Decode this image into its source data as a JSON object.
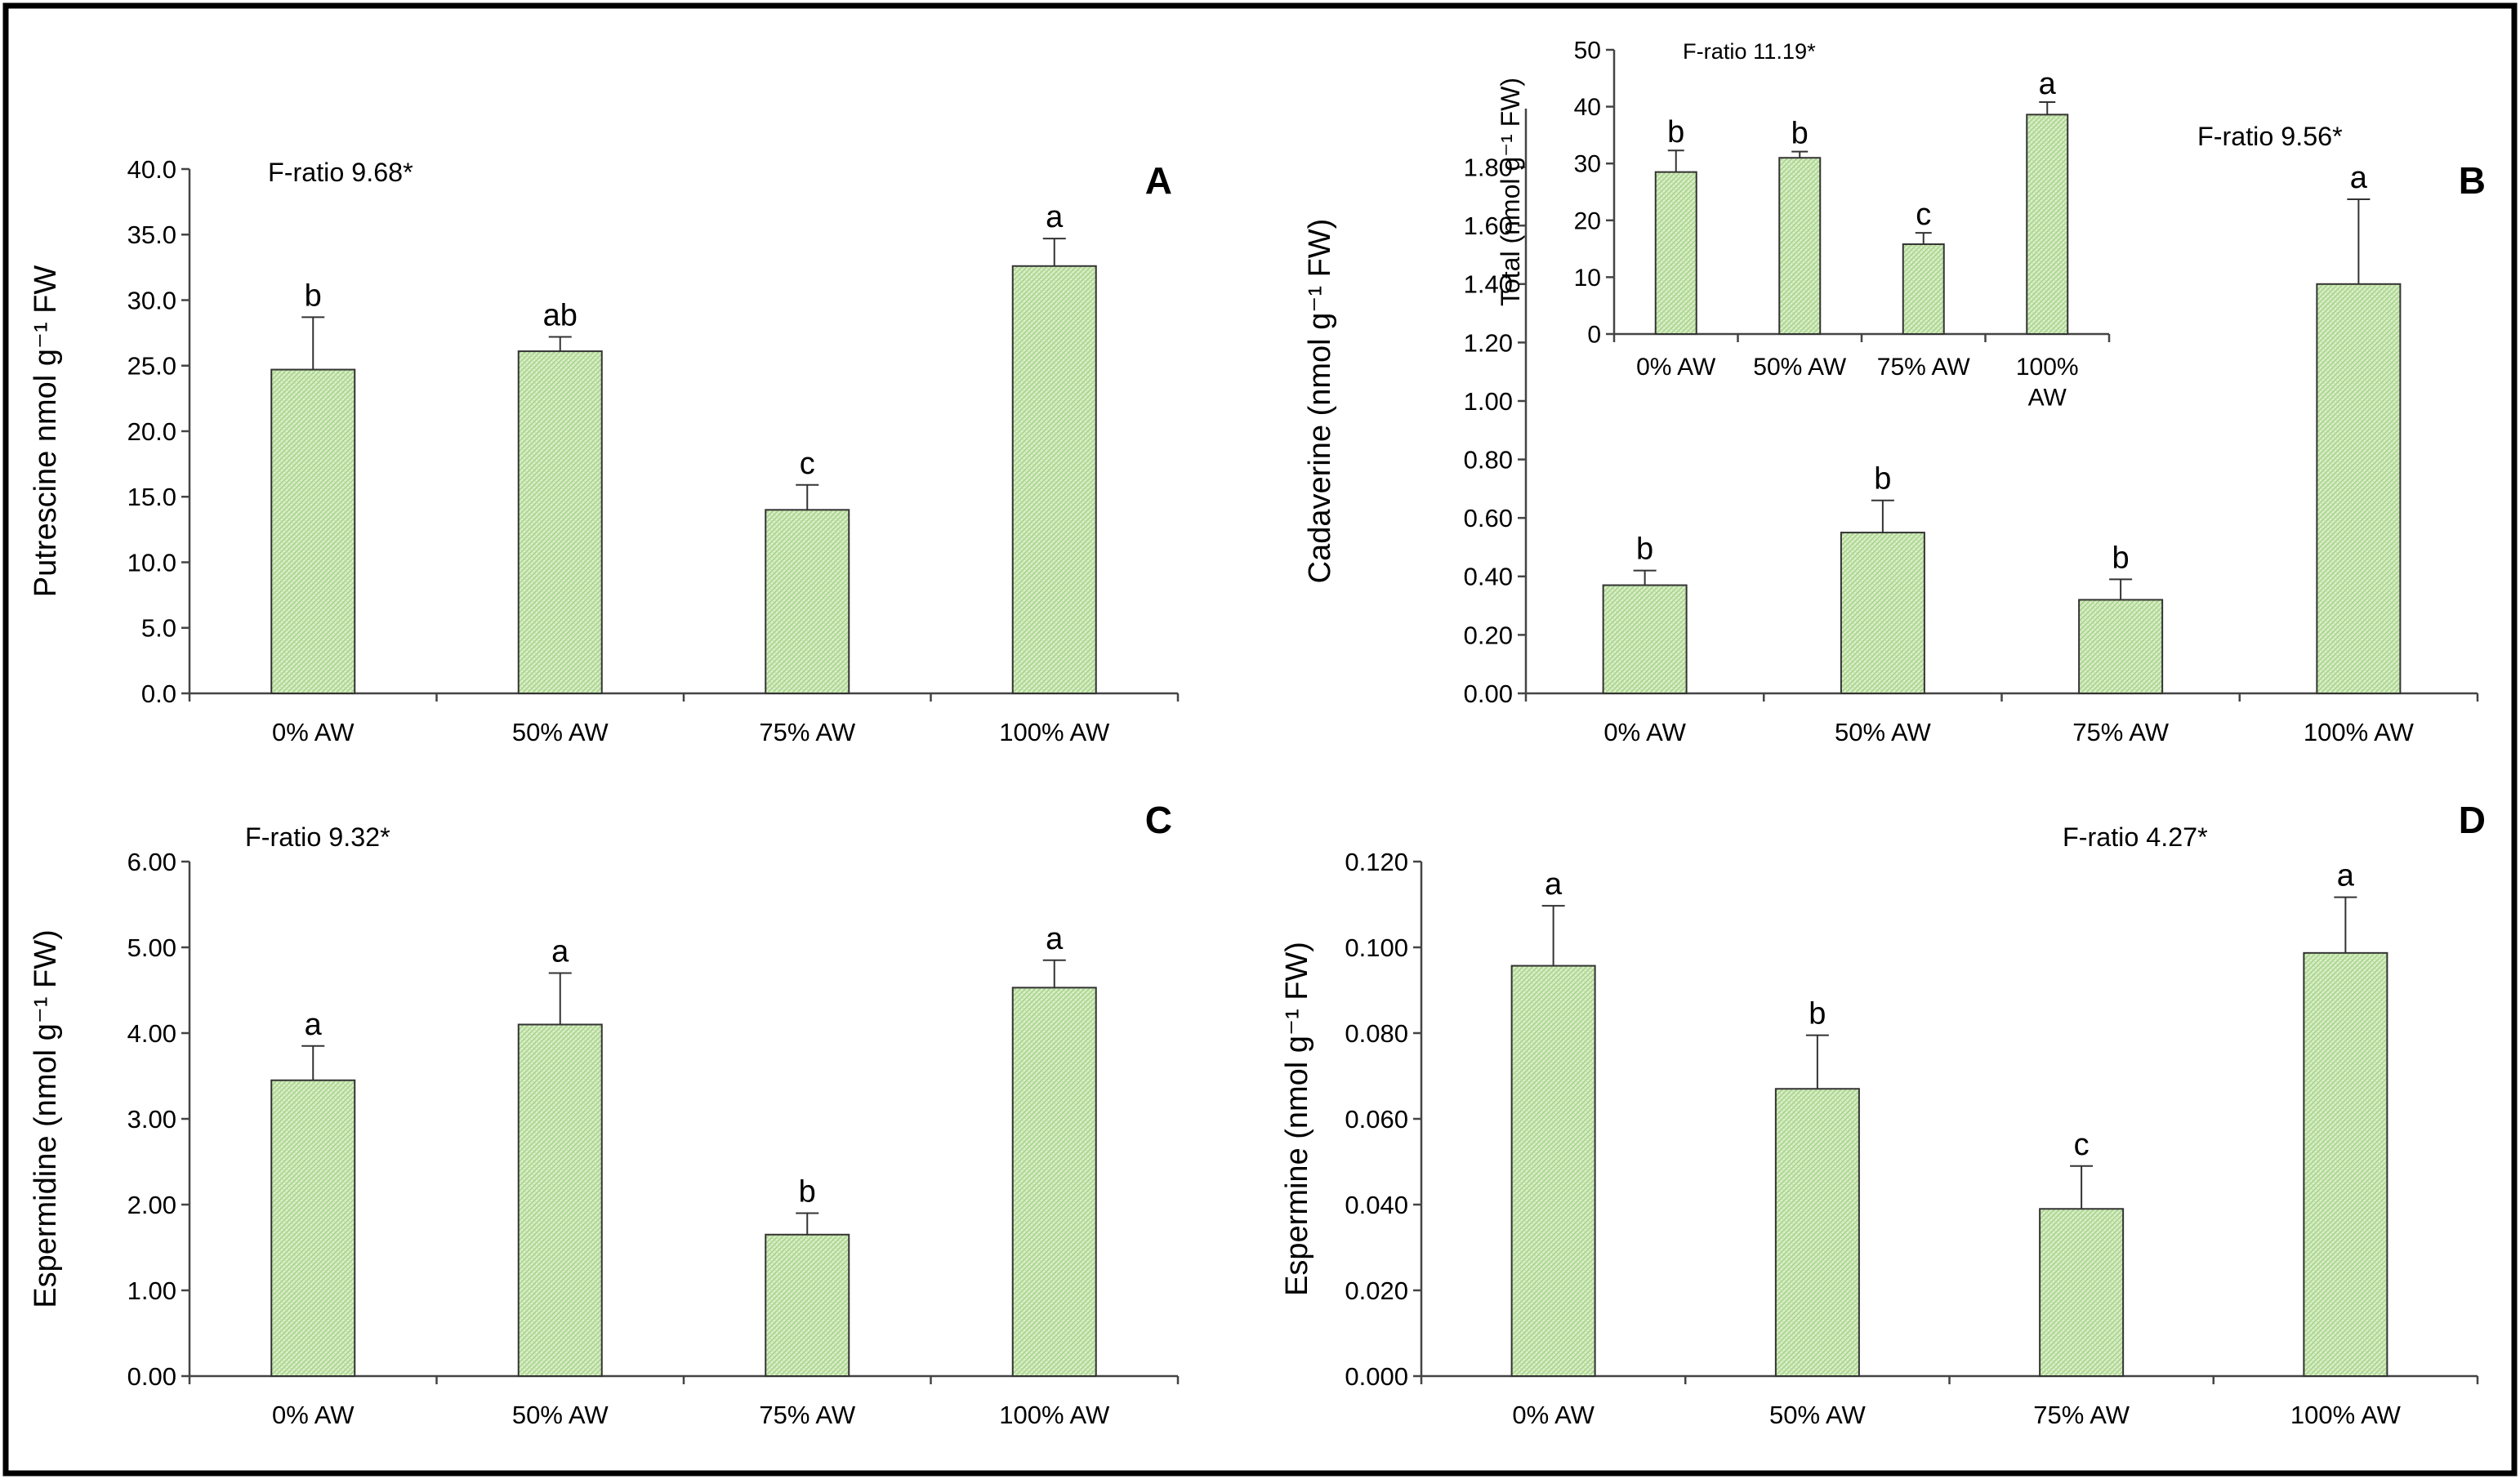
{
  "chart_data": [
    {
      "id": "A",
      "type": "bar",
      "panel_label": "A",
      "ylabel": "Putrescine nmol g⁻¹ FW",
      "f_ratio": "F-ratio  9.68*",
      "categories": [
        "0% AW",
        "50% AW",
        "75% AW",
        "100% AW"
      ],
      "values": [
        24.7,
        26.1,
        14.0,
        32.6
      ],
      "errors": [
        4.0,
        1.1,
        1.9,
        2.1
      ],
      "letters": [
        "b",
        "ab",
        "c",
        "a"
      ],
      "ylim": [
        0,
        40
      ],
      "yticks": [
        "0.0",
        "5.0",
        "10.0",
        "15.0",
        "20.0",
        "25.0",
        "30.0",
        "35.0",
        "40.0"
      ],
      "bar_color": "#c8e6b0",
      "grid": false
    },
    {
      "id": "B",
      "type": "bar",
      "panel_label": "B",
      "ylabel": "Cadaverine (nmol g⁻¹ FW)",
      "f_ratio": "F-ratio  9.56*",
      "categories": [
        "0% AW",
        "50% AW",
        "75% AW",
        "100% AW"
      ],
      "values": [
        0.37,
        0.55,
        0.32,
        1.4
      ],
      "errors": [
        0.05,
        0.11,
        0.07,
        0.29
      ],
      "letters": [
        "b",
        "b",
        "b",
        "a"
      ],
      "ylim": [
        0,
        2.0
      ],
      "yticks": [
        "0.00",
        "0.20",
        "0.40",
        "0.60",
        "0.80",
        "1.00",
        "1.20",
        "1.40",
        "1.60",
        "1.80"
      ],
      "bar_color": "#c8e6b0",
      "grid": false,
      "inset": {
        "type": "bar",
        "ylabel": "Total (nmol g⁻¹ FW)",
        "f_ratio": "F-ratio  11.19*",
        "categories": [
          "0% AW",
          "50% AW",
          "75% AW",
          "100%\nAW"
        ],
        "values": [
          28.5,
          31.0,
          15.8,
          38.6
        ],
        "errors": [
          3.8,
          1.1,
          2.0,
          2.2
        ],
        "letters": [
          "b",
          "b",
          "c",
          "a"
        ],
        "ylim": [
          0,
          50
        ],
        "yticks": [
          "0",
          "10",
          "20",
          "30",
          "40",
          "50"
        ]
      }
    },
    {
      "id": "C",
      "type": "bar",
      "panel_label": "C",
      "ylabel": "Espermidine (nmol g⁻¹ FW)",
      "f_ratio": "F-ratio  9.32*",
      "categories": [
        "0% AW",
        "50% AW",
        "75% AW",
        "100% AW"
      ],
      "values": [
        3.45,
        4.1,
        1.65,
        4.53
      ],
      "errors": [
        0.4,
        0.6,
        0.25,
        0.32
      ],
      "letters": [
        "a",
        "a",
        "b",
        "a"
      ],
      "ylim": [
        0,
        6
      ],
      "yticks": [
        "0.00",
        "1.00",
        "2.00",
        "3.00",
        "4.00",
        "5.00",
        "6.00"
      ],
      "bar_color": "#c8e6b0",
      "grid": false
    },
    {
      "id": "D",
      "type": "bar",
      "panel_label": "D",
      "ylabel": "Espermine (nmol g⁻¹ FW)",
      "f_ratio": "F-ratio  4.27*",
      "categories": [
        "0% AW",
        "50% AW",
        "75% AW",
        "100% AW"
      ],
      "values": [
        0.0957,
        0.067,
        0.039,
        0.0987
      ],
      "errors": [
        0.014,
        0.0125,
        0.01,
        0.013
      ],
      "letters": [
        "a",
        "b",
        "c",
        "a"
      ],
      "ylim": [
        0,
        0.12
      ],
      "yticks": [
        "0.000",
        "0.020",
        "0.040",
        "0.060",
        "0.080",
        "0.100",
        "0.120"
      ],
      "bar_color": "#c8e6b0",
      "grid": false
    }
  ]
}
